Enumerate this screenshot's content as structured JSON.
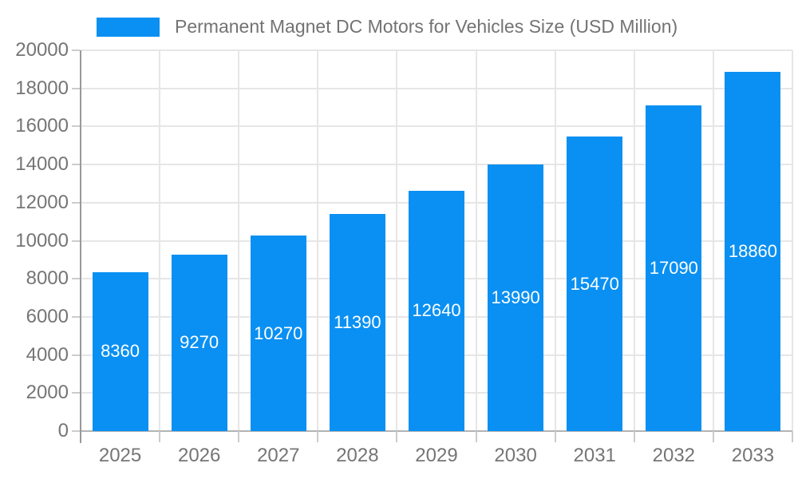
{
  "legend": {
    "series_label": "Permanent Magnet DC Motors for Vehicles Size (USD Million)"
  },
  "chart_data": {
    "type": "bar",
    "title": "Permanent Magnet DC Motors for Vehicles Size (USD Million)",
    "categories": [
      "2025",
      "2026",
      "2027",
      "2028",
      "2029",
      "2030",
      "2031",
      "2032",
      "2033"
    ],
    "values": [
      8360,
      9270,
      10270,
      11390,
      12640,
      13990,
      15470,
      17090,
      18860
    ],
    "value_labels": [
      "8360",
      "9270",
      "10270",
      "11390",
      "12640",
      "13990",
      "15470",
      "17090",
      "18860"
    ],
    "xlabel": "",
    "ylabel": "",
    "ylim": [
      0,
      20000
    ],
    "yticks": [
      0,
      2000,
      4000,
      6000,
      8000,
      10000,
      12000,
      14000,
      16000,
      18000,
      20000
    ],
    "grid": true,
    "legend_position": "top-left",
    "colors": {
      "bar": "#0a90f2",
      "value_label": "#ffffff",
      "axis_text": "#757575",
      "legend_text": "#737373",
      "gridline": "#e6e6e6",
      "x_axis_line": "#b3b3b3",
      "y_axis_line": "#999999",
      "tick": "#cccccc",
      "background": "#ffffff"
    }
  }
}
